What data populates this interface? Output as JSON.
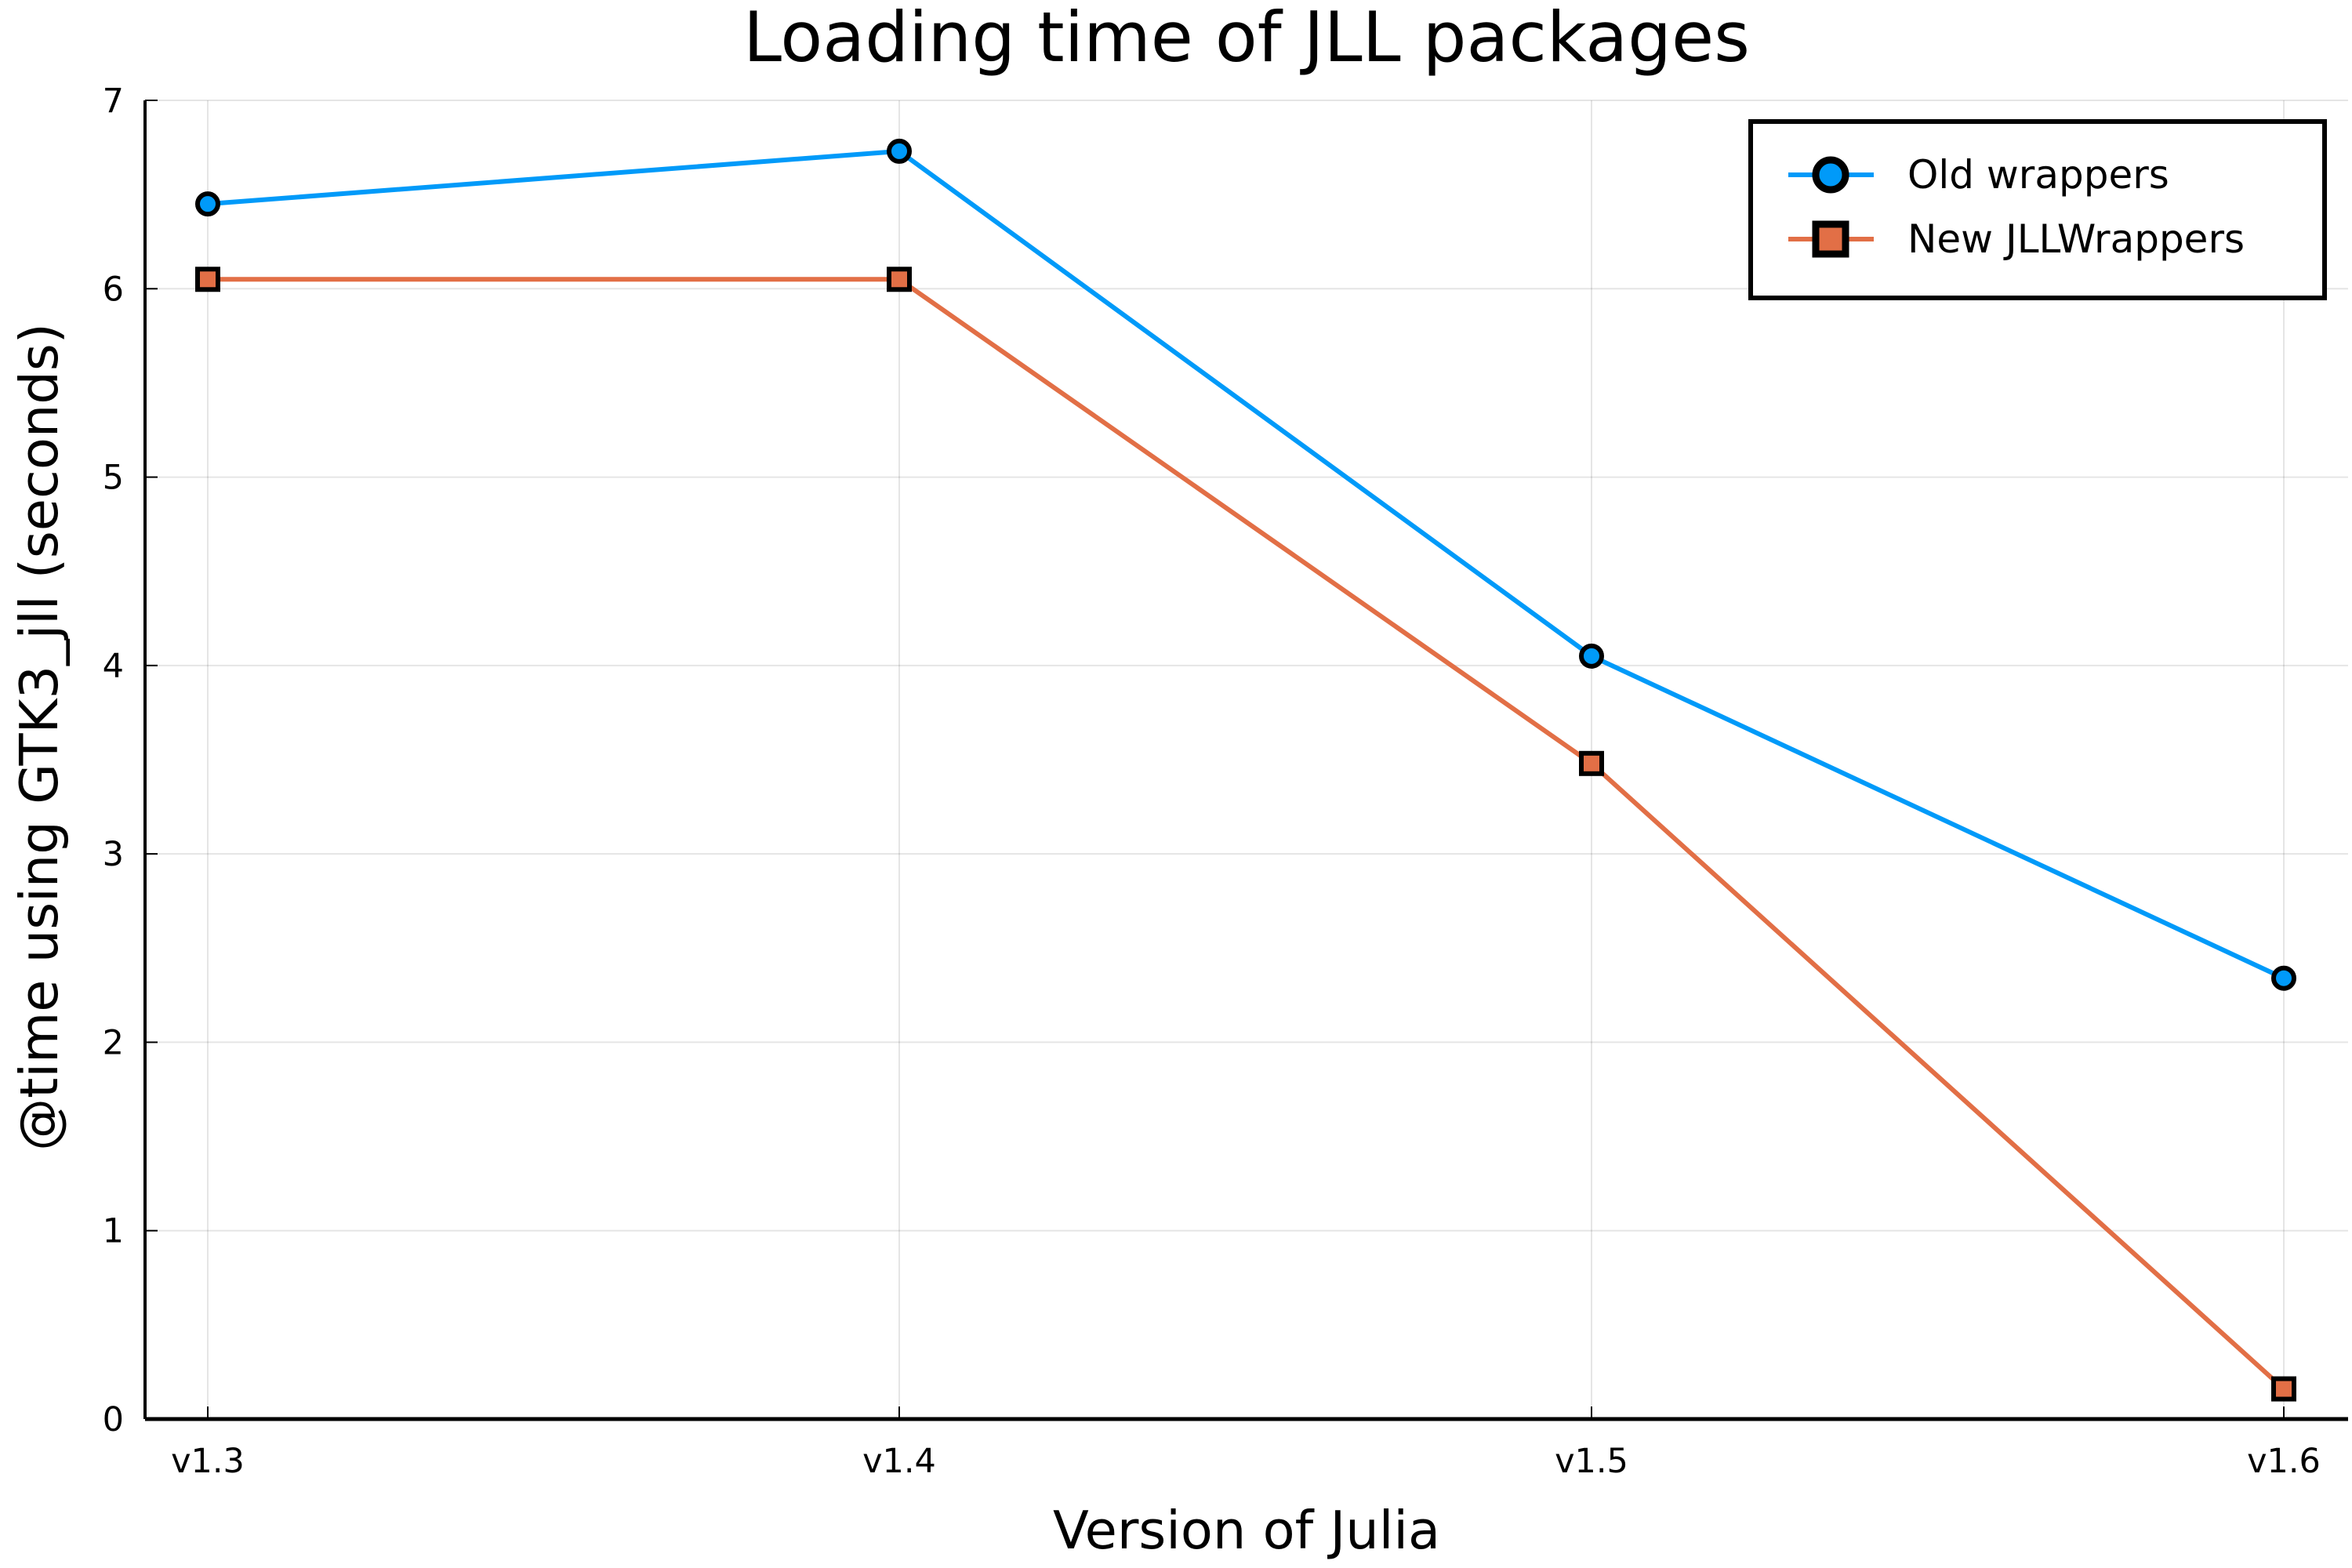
{
  "chart_data": {
    "type": "line",
    "title": "Loading time of JLL packages",
    "xlabel": "Version of Julia",
    "ylabel": "@time using GTK3_jll (seconds)",
    "categories": [
      "v1.3",
      "v1.4",
      "v1.5",
      "v1.6"
    ],
    "ylim": [
      0,
      7
    ],
    "yticks": [
      "0",
      "1",
      "2",
      "3",
      "4",
      "5",
      "6",
      "7"
    ],
    "grid": true,
    "legend_position": "top-right",
    "series": [
      {
        "name": "Old wrappers",
        "values": [
          6.45,
          6.73,
          4.05,
          2.34
        ],
        "color": "#009af9",
        "marker": "circle"
      },
      {
        "name": "New JLLWrappers",
        "values": [
          6.05,
          6.05,
          3.48,
          0.16
        ],
        "color": "#e26f46",
        "marker": "square"
      }
    ]
  }
}
